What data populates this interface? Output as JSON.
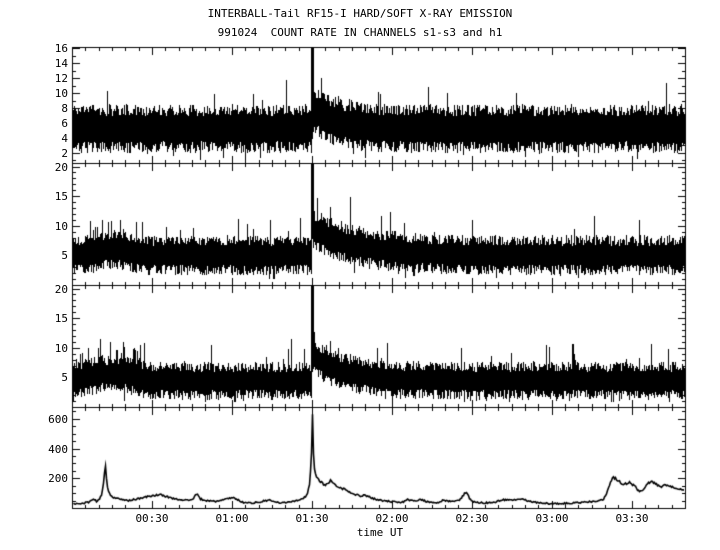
{
  "colors": {
    "foreground": "#000000",
    "background": "#ffffff"
  },
  "chart_data": {
    "type": "line",
    "title": "INTERBALL-Tail RF15-I HARD/SOFT X-RAY EMISSION",
    "subtitle": "991024  COUNT RATE IN CHANNELS s1-s3 and h1",
    "xlabel": "time UT",
    "legend": "none",
    "grid": false,
    "x_axis": {
      "start_minutes": 0,
      "end_minutes": 230,
      "minor_step_minutes": 5,
      "major_ticks": [
        {
          "minute": 30,
          "label": "00:30"
        },
        {
          "minute": 60,
          "label": "01:00"
        },
        {
          "minute": 90,
          "label": "01:30"
        },
        {
          "minute": 120,
          "label": "02:00"
        },
        {
          "minute": 150,
          "label": "02:30"
        },
        {
          "minute": 180,
          "label": "03:00"
        },
        {
          "minute": 210,
          "label": "03:30"
        }
      ]
    },
    "flare_time_label": "01:30",
    "panels": [
      {
        "channel": "s1",
        "ylim": [
          0.6,
          16.2
        ],
        "yticks": [
          2,
          4,
          6,
          8,
          10,
          12,
          14,
          16
        ],
        "y_minor_step": 1,
        "noise": {
          "baseline": 5.2,
          "half_base": 1.7,
          "half_var": 1.6,
          "spike_prob": 0.05,
          "spike_amp": 4.5,
          "dip_prob": 0.05,
          "dip_amp": 1.6,
          "floor": 0.8
        },
        "flare": {
          "minute": 90,
          "peak": 16.2,
          "width_minutes": 0.5,
          "decay_boost": 2.8,
          "decay_tau_minutes": 8
        },
        "seed": 11
      },
      {
        "channel": "s2",
        "ylim": [
          0,
          20.6
        ],
        "yticks": [
          5,
          10,
          15,
          20
        ],
        "y_minor_step": 1,
        "noise": {
          "baseline": 5.0,
          "half_base": 1.6,
          "half_var": 1.8,
          "spike_prob": 0.05,
          "spike_amp": 4.0,
          "dip_prob": 0.05,
          "dip_amp": 1.8,
          "floor": 1.0
        },
        "bump": {
          "center_minute": 15,
          "sigma_minutes": 6,
          "boost": 0.9,
          "spike_boost": 2.5
        },
        "flare": {
          "minute": 90,
          "peak": 20.6,
          "width_minutes": 0.5,
          "decay_boost": 4.5,
          "decay_tau_minutes": 16
        },
        "seed": 22
      },
      {
        "channel": "s3",
        "ylim": [
          0,
          20.6
        ],
        "yticks": [
          5,
          10,
          15,
          20
        ],
        "y_minor_step": 1,
        "noise": {
          "baseline": 4.4,
          "half_base": 1.5,
          "half_var": 1.7,
          "spike_prob": 0.05,
          "spike_amp": 4.0,
          "dip_prob": 0.05,
          "dip_amp": 1.6,
          "floor": 0.9
        },
        "bump": {
          "center_minute": 15,
          "sigma_minutes": 7,
          "boost": 1.3,
          "spike_boost": 3.5
        },
        "flare": {
          "minute": 90,
          "peak": 20.6,
          "width_minutes": 0.5,
          "decay_boost": 4.2,
          "decay_tau_minutes": 12
        },
        "seed": 33
      },
      {
        "channel": "h1",
        "ylim": [
          0,
          680
        ],
        "yticks": [
          200,
          400,
          600
        ],
        "y_minor_step": 50,
        "curve": {
          "jitter": 4,
          "keypoints": [
            [
              0,
              30
            ],
            [
              3,
              28
            ],
            [
              6,
              40
            ],
            [
              8,
              60
            ],
            [
              9,
              45
            ],
            [
              10,
              55
            ],
            [
              11,
              90
            ],
            [
              11.7,
              180
            ],
            [
              12.3,
              300
            ],
            [
              13,
              150
            ],
            [
              14,
              90
            ],
            [
              15,
              75
            ],
            [
              17,
              62
            ],
            [
              19,
              55
            ],
            [
              21,
              50
            ],
            [
              23,
              58
            ],
            [
              25,
              62
            ],
            [
              27,
              72
            ],
            [
              29,
              80
            ],
            [
              31,
              86
            ],
            [
              33,
              90
            ],
            [
              35,
              78
            ],
            [
              37,
              68
            ],
            [
              39,
              60
            ],
            [
              41,
              56
            ],
            [
              43,
              52
            ],
            [
              45,
              55
            ],
            [
              46,
              85
            ],
            [
              47,
              90
            ],
            [
              48,
              60
            ],
            [
              50,
              50
            ],
            [
              52,
              48
            ],
            [
              54,
              44
            ],
            [
              56,
              52
            ],
            [
              58,
              62
            ],
            [
              60,
              72
            ],
            [
              62,
              55
            ],
            [
              64,
              38
            ],
            [
              67,
              34
            ],
            [
              70,
              38
            ],
            [
              72,
              48
            ],
            [
              74,
              52
            ],
            [
              76,
              40
            ],
            [
              78,
              34
            ],
            [
              80,
              38
            ],
            [
              82,
              44
            ],
            [
              84,
              50
            ],
            [
              86,
              60
            ],
            [
              88,
              85
            ],
            [
              89,
              160
            ],
            [
              89.6,
              320
            ],
            [
              90,
              660
            ],
            [
              90.5,
              320
            ],
            [
              91,
              230
            ],
            [
              92,
              195
            ],
            [
              93,
              180
            ],
            [
              94,
              160
            ],
            [
              95,
              155
            ],
            [
              96,
              170
            ],
            [
              97,
              185
            ],
            [
              98,
              160
            ],
            [
              99,
              145
            ],
            [
              100,
              138
            ],
            [
              102,
              128
            ],
            [
              104,
              105
            ],
            [
              106,
              90
            ],
            [
              108,
              82
            ],
            [
              110,
              86
            ],
            [
              112,
              68
            ],
            [
              114,
              58
            ],
            [
              116,
              50
            ],
            [
              118,
              46
            ],
            [
              120,
              42
            ],
            [
              122,
              38
            ],
            [
              124,
              40
            ],
            [
              126,
              58
            ],
            [
              127,
              48
            ],
            [
              129,
              52
            ],
            [
              131,
              56
            ],
            [
              133,
              42
            ],
            [
              135,
              36
            ],
            [
              137,
              34
            ],
            [
              139,
              52
            ],
            [
              141,
              46
            ],
            [
              143,
              44
            ],
            [
              145,
              52
            ],
            [
              146,
              70
            ],
            [
              147,
              95
            ],
            [
              148,
              108
            ],
            [
              149,
              60
            ],
            [
              150,
              44
            ],
            [
              152,
              38
            ],
            [
              154,
              34
            ],
            [
              157,
              36
            ],
            [
              159,
              42
            ],
            [
              161,
              52
            ],
            [
              163,
              58
            ],
            [
              165,
              50
            ],
            [
              167,
              58
            ],
            [
              169,
              62
            ],
            [
              171,
              48
            ],
            [
              173,
              40
            ],
            [
              176,
              34
            ],
            [
              179,
              30
            ],
            [
              182,
              29
            ],
            [
              185,
              31
            ],
            [
              188,
              34
            ],
            [
              191,
              38
            ],
            [
              194,
              42
            ],
            [
              197,
              46
            ],
            [
              199,
              55
            ],
            [
              200,
              80
            ],
            [
              201,
              130
            ],
            [
              202,
              185
            ],
            [
              203,
              205
            ],
            [
              204,
              195
            ],
            [
              205,
              180
            ],
            [
              206,
              165
            ],
            [
              207,
              158
            ],
            [
              208,
              165
            ],
            [
              209,
              172
            ],
            [
              210,
              160
            ],
            [
              211,
              150
            ],
            [
              212,
              125
            ],
            [
              213,
              108
            ],
            [
              214,
              125
            ],
            [
              215,
              148
            ],
            [
              216,
              165
            ],
            [
              217,
              178
            ],
            [
              218,
              170
            ],
            [
              219,
              160
            ],
            [
              220,
              148
            ],
            [
              221,
              142
            ],
            [
              222,
              150
            ],
            [
              223,
              155
            ],
            [
              224,
              148
            ],
            [
              225,
              140
            ],
            [
              227,
              135
            ],
            [
              228,
              128
            ],
            [
              230,
              122
            ]
          ]
        },
        "seed": 44
      }
    ]
  }
}
